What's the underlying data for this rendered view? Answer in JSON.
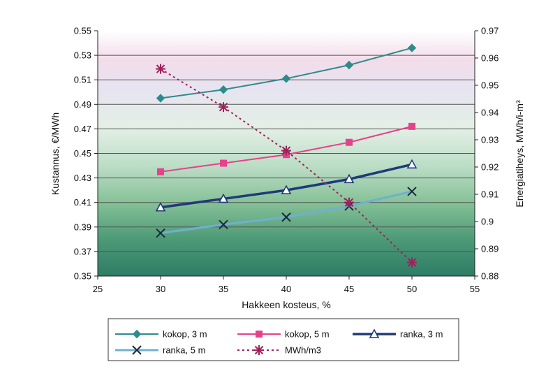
{
  "chart_data": {
    "type": "line",
    "xlabel": "Hakkeen kosteus, %",
    "ylabel": "Kustannus, €/MWh",
    "y2label": "Energiatiheys, MWh/i-m³",
    "xlim": [
      25,
      55
    ],
    "ylim": [
      0.35,
      0.55
    ],
    "y2lim": [
      0.88,
      0.97
    ],
    "x_ticks": [
      "25",
      "30",
      "35",
      "40",
      "45",
      "50",
      "55"
    ],
    "y_ticks": [
      "0.35",
      "0.37",
      "0.39",
      "0.41",
      "0.43",
      "0.45",
      "0.47",
      "0.49",
      "0.51",
      "0.53",
      "0.55"
    ],
    "y2_ticks": [
      "0.88",
      "0.89",
      "0.9",
      "0.91",
      "0.92",
      "0.93",
      "0.94",
      "0.95",
      "0.96",
      "0.97"
    ],
    "grid": true,
    "legend_position": "bottom",
    "x": [
      30,
      35,
      40,
      45,
      50
    ],
    "series": [
      {
        "name": "kokop, 3 m",
        "axis": "left",
        "values": [
          0.495,
          0.502,
          0.511,
          0.522,
          0.536
        ],
        "color": "#2e8b8b",
        "marker": "diamond",
        "dash": false,
        "width": 2
      },
      {
        "name": "kokop, 5 m",
        "axis": "left",
        "values": [
          0.435,
          0.442,
          0.449,
          0.459,
          0.472
        ],
        "color": "#e8408a",
        "marker": "square",
        "dash": false,
        "width": 2
      },
      {
        "name": "ranka, 3 m",
        "axis": "left",
        "values": [
          0.406,
          0.413,
          0.42,
          0.429,
          0.441
        ],
        "color": "#1f3a7a",
        "marker": "triangle",
        "dash": false,
        "width": 3.5
      },
      {
        "name": "ranka, 5 m",
        "axis": "left",
        "values": [
          0.385,
          0.392,
          0.398,
          0.407,
          0.419
        ],
        "color": "#6fb0d0",
        "marker": "x",
        "dash": false,
        "width": 3
      },
      {
        "name": "MWh/m3",
        "axis": "right",
        "values": [
          0.956,
          0.942,
          0.926,
          0.907,
          0.885
        ],
        "color": "#a0205a",
        "marker": "star",
        "dash": true,
        "width": 2
      }
    ]
  }
}
